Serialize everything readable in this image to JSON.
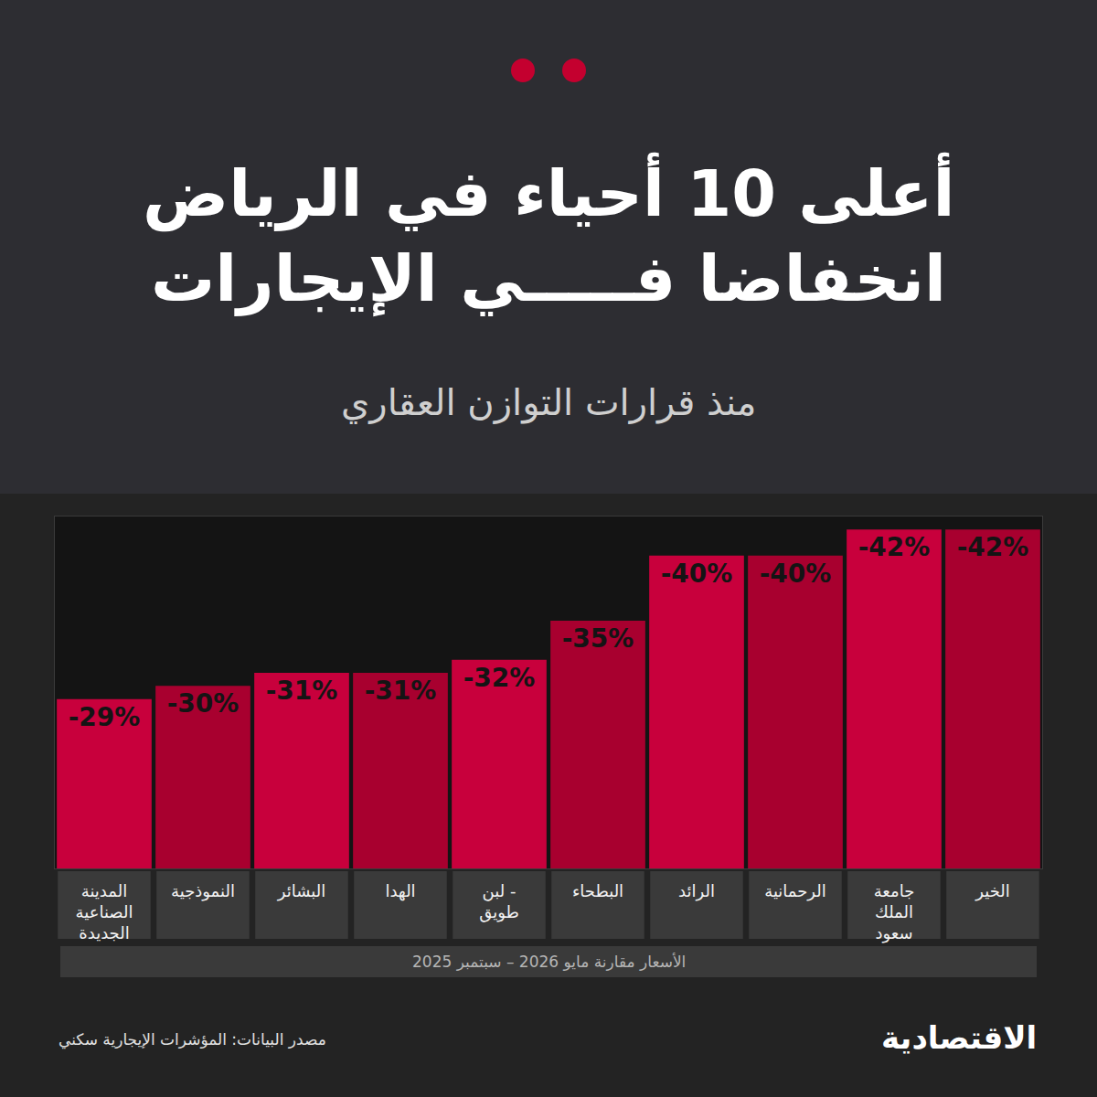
{
  "chart_data": {
    "type": "bar",
    "title": [
      "أعلى 10 أحياء في الرياض",
      "انخفاضا فـــــي الإيجارات"
    ],
    "subtitle": "منذ قرارات التوازن العقاري",
    "categories": [
      "المدينة الصناعية الجديدة",
      "النموذجية",
      "البشائر",
      "الهدا",
      "لبن - طويق",
      "البطحاء",
      "الرائد",
      "الرحمانية",
      "جامعة الملك سعود",
      "الخير"
    ],
    "values": [
      -29,
      -30,
      -31,
      -31,
      -32,
      -35,
      -40,
      -40,
      -42,
      -42
    ],
    "value_labels": [
      "-29%",
      "-30%",
      "-31%",
      "-31%",
      "-32%",
      "-35%",
      "-40%",
      "-40%",
      "-42%",
      "-42%"
    ],
    "colors": [
      "#c8003c",
      "#a8002f",
      "#c8003c",
      "#a8002f",
      "#c8003c",
      "#a8002f",
      "#c8003c",
      "#a8002f",
      "#c8003c",
      "#a8002f"
    ],
    "ylim": [
      -16,
      -43
    ],
    "xlabel": "الأسعار مقارنة مايو 2026 – سبتمبر 2025",
    "tick_labels": "x",
    "data_labels": true,
    "grid": false,
    "source": "مصدر البيانات: المؤشرات الإيجارية سكني",
    "annotations": [
      "الاقتصادية"
    ]
  }
}
